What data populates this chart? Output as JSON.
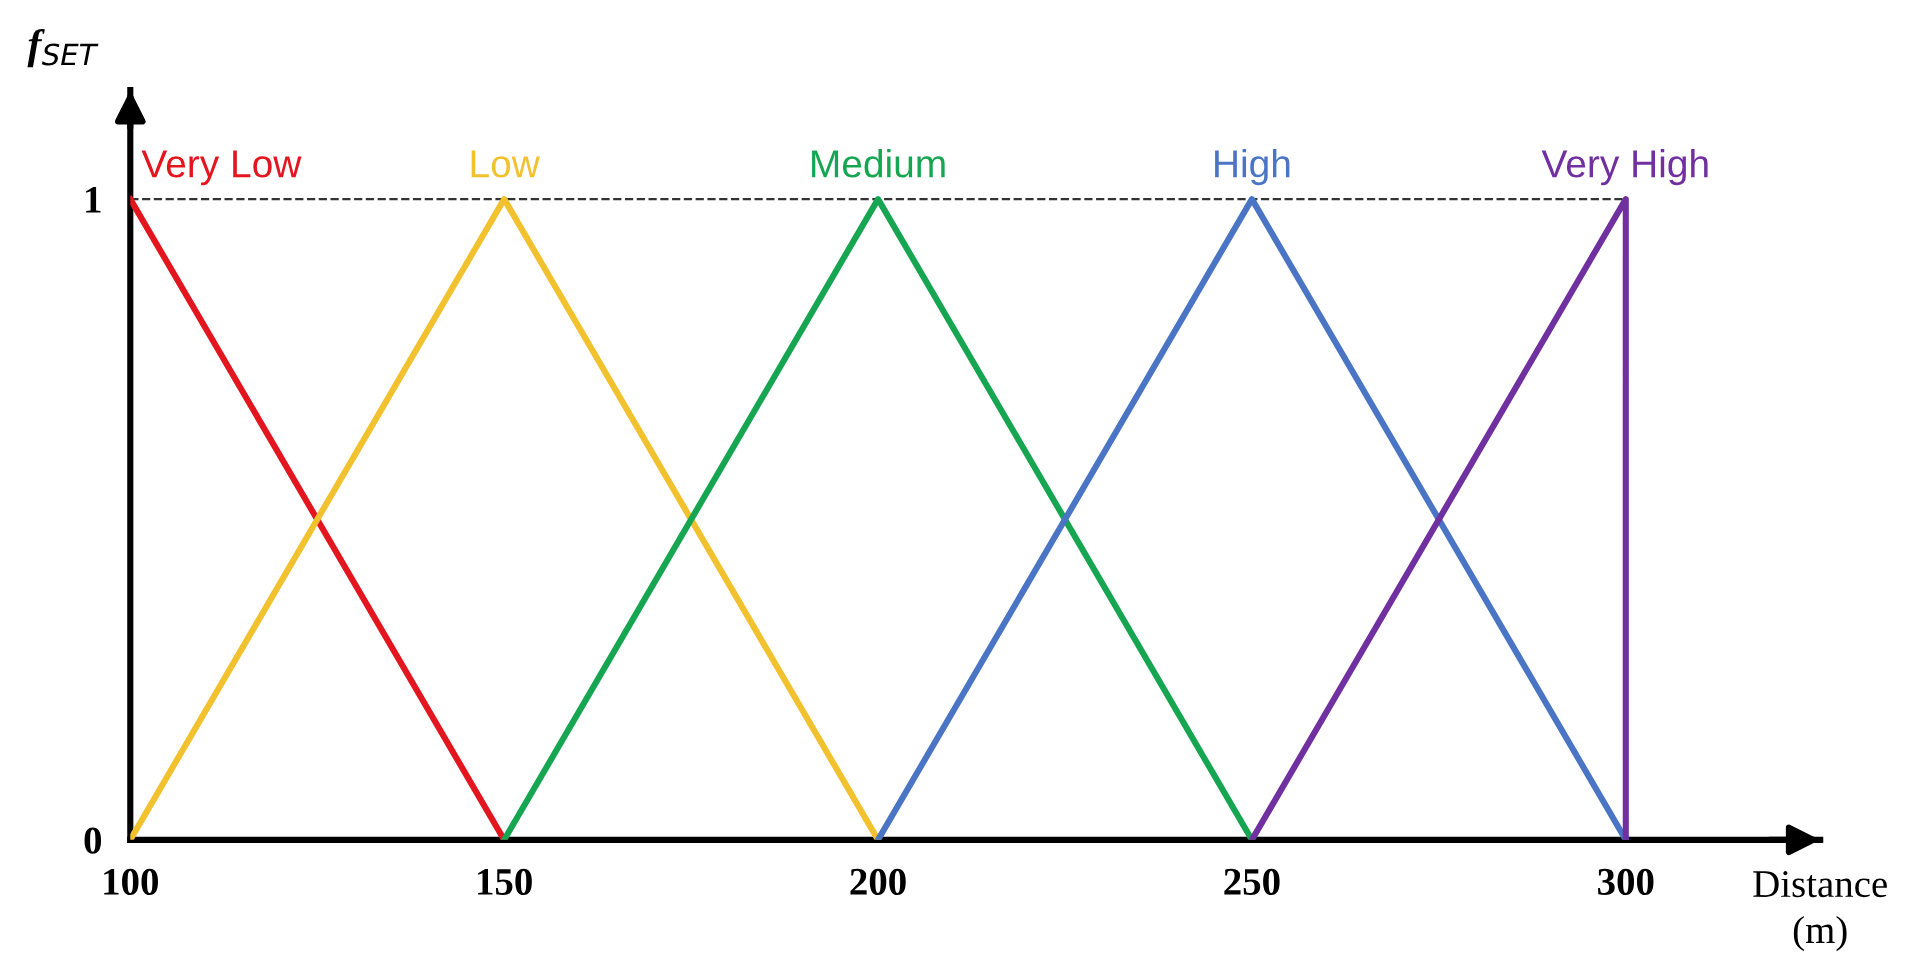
{
  "chart_data": {
    "type": "line",
    "xlabel": "Distance\n(m)",
    "ylabel": "f$_{SET}$",
    "xlim": [
      100,
      326
    ],
    "ylim": [
      0,
      1.17
    ],
    "xticks": [
      100,
      150,
      200,
      250,
      300
    ],
    "yticks": [
      0,
      1
    ],
    "grid": false,
    "legend": false,
    "marker": "none",
    "line_style": "solid",
    "ref_lines": [
      {
        "axis": "y",
        "value": 1,
        "color": "#333333",
        "line_style": "dashed"
      }
    ],
    "series": [
      {
        "name": "Very Low",
        "color": "#e3151f",
        "x": [
          100,
          150
        ],
        "values": [
          1,
          0
        ]
      },
      {
        "name": "Low",
        "color": "#f2c12e",
        "x": [
          100,
          150,
          200
        ],
        "values": [
          0,
          1,
          0
        ]
      },
      {
        "name": "Medium",
        "color": "#16a651",
        "x": [
          150,
          200,
          250
        ],
        "values": [
          0,
          1,
          0
        ]
      },
      {
        "name": "High",
        "color": "#4a74c4",
        "x": [
          200,
          250,
          300
        ],
        "values": [
          0,
          1,
          0
        ]
      },
      {
        "name": "Very High",
        "color": "#7030a0",
        "x": [
          250,
          300,
          300
        ],
        "values": [
          0,
          1,
          0
        ]
      }
    ]
  }
}
